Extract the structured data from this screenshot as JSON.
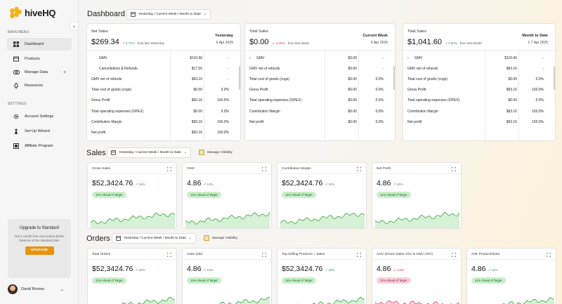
{
  "app": {
    "name": "hiveHQ"
  },
  "sidebar": {
    "main_menu_label": "MAIN MENU",
    "settings_label": "SETTINGS",
    "items": [
      {
        "label": "Dashboard",
        "icon": "dashboard-icon"
      },
      {
        "label": "Products",
        "icon": "box-icon"
      },
      {
        "label": "Manage Data",
        "icon": "data-icon",
        "extra": "+"
      },
      {
        "label": "Resources",
        "icon": "rocket-icon"
      }
    ],
    "settings_items": [
      {
        "label": "Account Settings",
        "icon": "gear-icon"
      },
      {
        "label": "Set-Up Wizard",
        "icon": "wizard-icon"
      },
      {
        "label": "Affiliate Program",
        "icon": "affiliate-icon"
      }
    ],
    "upgrade": {
      "title": "Upgrade to Standard",
      "description": "Get 1 month free and unlock all the features of the standard plan",
      "button": "UPGRADE"
    },
    "user": {
      "name": "David Romeo"
    }
  },
  "dashboard": {
    "title": "Dashboard",
    "range": "Yesterday / Current Week / Month to Date",
    "cards": [
      {
        "header": "Net Sales",
        "value": "$269.34",
        "change": "↗ 8.72%",
        "change_dir": "up",
        "from": "from last Yesterday",
        "period": "Yesterday",
        "date": "6 Apr 2025",
        "rows": [
          {
            "label": "GMV",
            "amount": "$110.66",
            "pct": "-",
            "indent": true
          },
          {
            "label": "Cancellations & Refunds",
            "amount": "$17.50",
            "pct": "-",
            "indent": true
          },
          {
            "label": "GMV net of refunds",
            "amount": "$93.16",
            "pct": "-"
          },
          {
            "label": "Total cost of goods (cogs)",
            "amount": "$0.00",
            "pct": "0.0%"
          },
          {
            "label": "Gross Profit",
            "amount": "$93.16",
            "pct": "100.0%"
          },
          {
            "label": "Total operating expenses (OPEX)",
            "amount": "$0.00",
            "pct": "0.0%"
          },
          {
            "label": "Contribution Margin",
            "amount": "$93.16",
            "pct": "100.0%"
          },
          {
            "label": "Net profit",
            "amount": "$93.16",
            "pct": "100.0%"
          }
        ]
      },
      {
        "header": "Total Sales",
        "value": "$0.00",
        "change": "↘ -3.45%",
        "change_dir": "down",
        "from": "from last Week",
        "period": "Current Week",
        "date": "6 Apr 2025",
        "rows": [
          {
            "label": "GMV",
            "amount": "$0.00",
            "pct": "-",
            "chevron": ">"
          },
          {
            "label": "GMV net of refunds",
            "amount": "$0.00",
            "pct": "-"
          },
          {
            "label": "Total cost of goods (cogs)",
            "amount": "$0.00",
            "pct": "0.0%"
          },
          {
            "label": "Gross Profit",
            "amount": "$0.00",
            "pct": "0.0%"
          },
          {
            "label": "Total operating expenses (OPEX)",
            "amount": "$0.00",
            "pct": "0.0%"
          },
          {
            "label": "Contribution Margin",
            "amount": "$0.00",
            "pct": "0.0%"
          },
          {
            "label": "Net profit",
            "amount": "$0.00",
            "pct": "0.0%"
          }
        ]
      },
      {
        "header": "Total Sales",
        "value": "$1,041.60",
        "change": "↗ 3.55%",
        "change_dir": "up",
        "from": "from last Month",
        "period": "Month to Date",
        "date": "1-7 Apr 2025",
        "rows": [
          {
            "label": "GMV",
            "amount": "$110.66",
            "pct": "-",
            "chevron": ">"
          },
          {
            "label": "GMV net of refunds",
            "amount": "$93.16",
            "pct": "-"
          },
          {
            "label": "Total cost of goods (cogs)",
            "amount": "$0.00",
            "pct": "0.0%"
          },
          {
            "label": "Gross Profit",
            "amount": "$93.16",
            "pct": "100.0%"
          },
          {
            "label": "Total operating expenses (OPEX)",
            "amount": "$0.00",
            "pct": "0.0%"
          },
          {
            "label": "Contribution Margin",
            "amount": "$93.16",
            "pct": "100.0%"
          },
          {
            "label": "Net profit",
            "amount": "$93.16",
            "pct": "100.0%"
          }
        ]
      }
    ]
  },
  "sales": {
    "title": "Sales",
    "range": "Yesterday / Current Week / Month to Date",
    "manage_visibility": "Manage Visibility",
    "cards": [
      {
        "title": "Gross Sales",
        "value": "$52,3424.76",
        "change": "↗ 16%",
        "dir": "up",
        "target": "11% Ahead of Target"
      },
      {
        "title": "GMV",
        "value": "4.86",
        "change": "↗ 14%",
        "dir": "up",
        "target": "11% Ahead of Target"
      },
      {
        "title": "Contribution Margin",
        "value": "$52,3424.76",
        "change": "↗ 16%",
        "dir": "up",
        "target": "11% Ahead of Target"
      },
      {
        "title": "Net Profit",
        "value": "4.86",
        "change": "↗ 14%",
        "dir": "up",
        "target": "11% Ahead of Target"
      }
    ]
  },
  "orders": {
    "title": "Orders",
    "range": "Yesterday / Current Week / Month to Date",
    "manage_visibility": "Manage Visibility",
    "cards": [
      {
        "title": "Total Orders",
        "value": "$52,3424.76",
        "change": "↗ 16%",
        "dir": "up",
        "target": "11% Ahead of Target"
      },
      {
        "title": "Units Sold",
        "value": "4.86",
        "change": "↗ 14%",
        "dir": "up",
        "target": "11% Ahead of Target"
      },
      {
        "title": "Top Selling Products + Sales",
        "value": "$52,3424.76",
        "change": "↗ 16%",
        "dir": "up",
        "target": "11% Ahead of Target"
      },
      {
        "title": "AOV (Gross Sales AOV & GMV AOV)",
        "value": "4.86",
        "change": "↘ -14%",
        "dir": "down",
        "target": "11% Ahead of Target"
      },
      {
        "title": "AVE Product/Order",
        "value": "4.86",
        "change": "↗ 14%",
        "dir": "up",
        "target": "11% Ahead of Target"
      }
    ]
  },
  "colors": {
    "up": "#2f9e44",
    "down": "#d6336c",
    "accent": "#e7930f",
    "spark_up_line": "#4caf50",
    "spark_down_line": "#e0587f"
  }
}
